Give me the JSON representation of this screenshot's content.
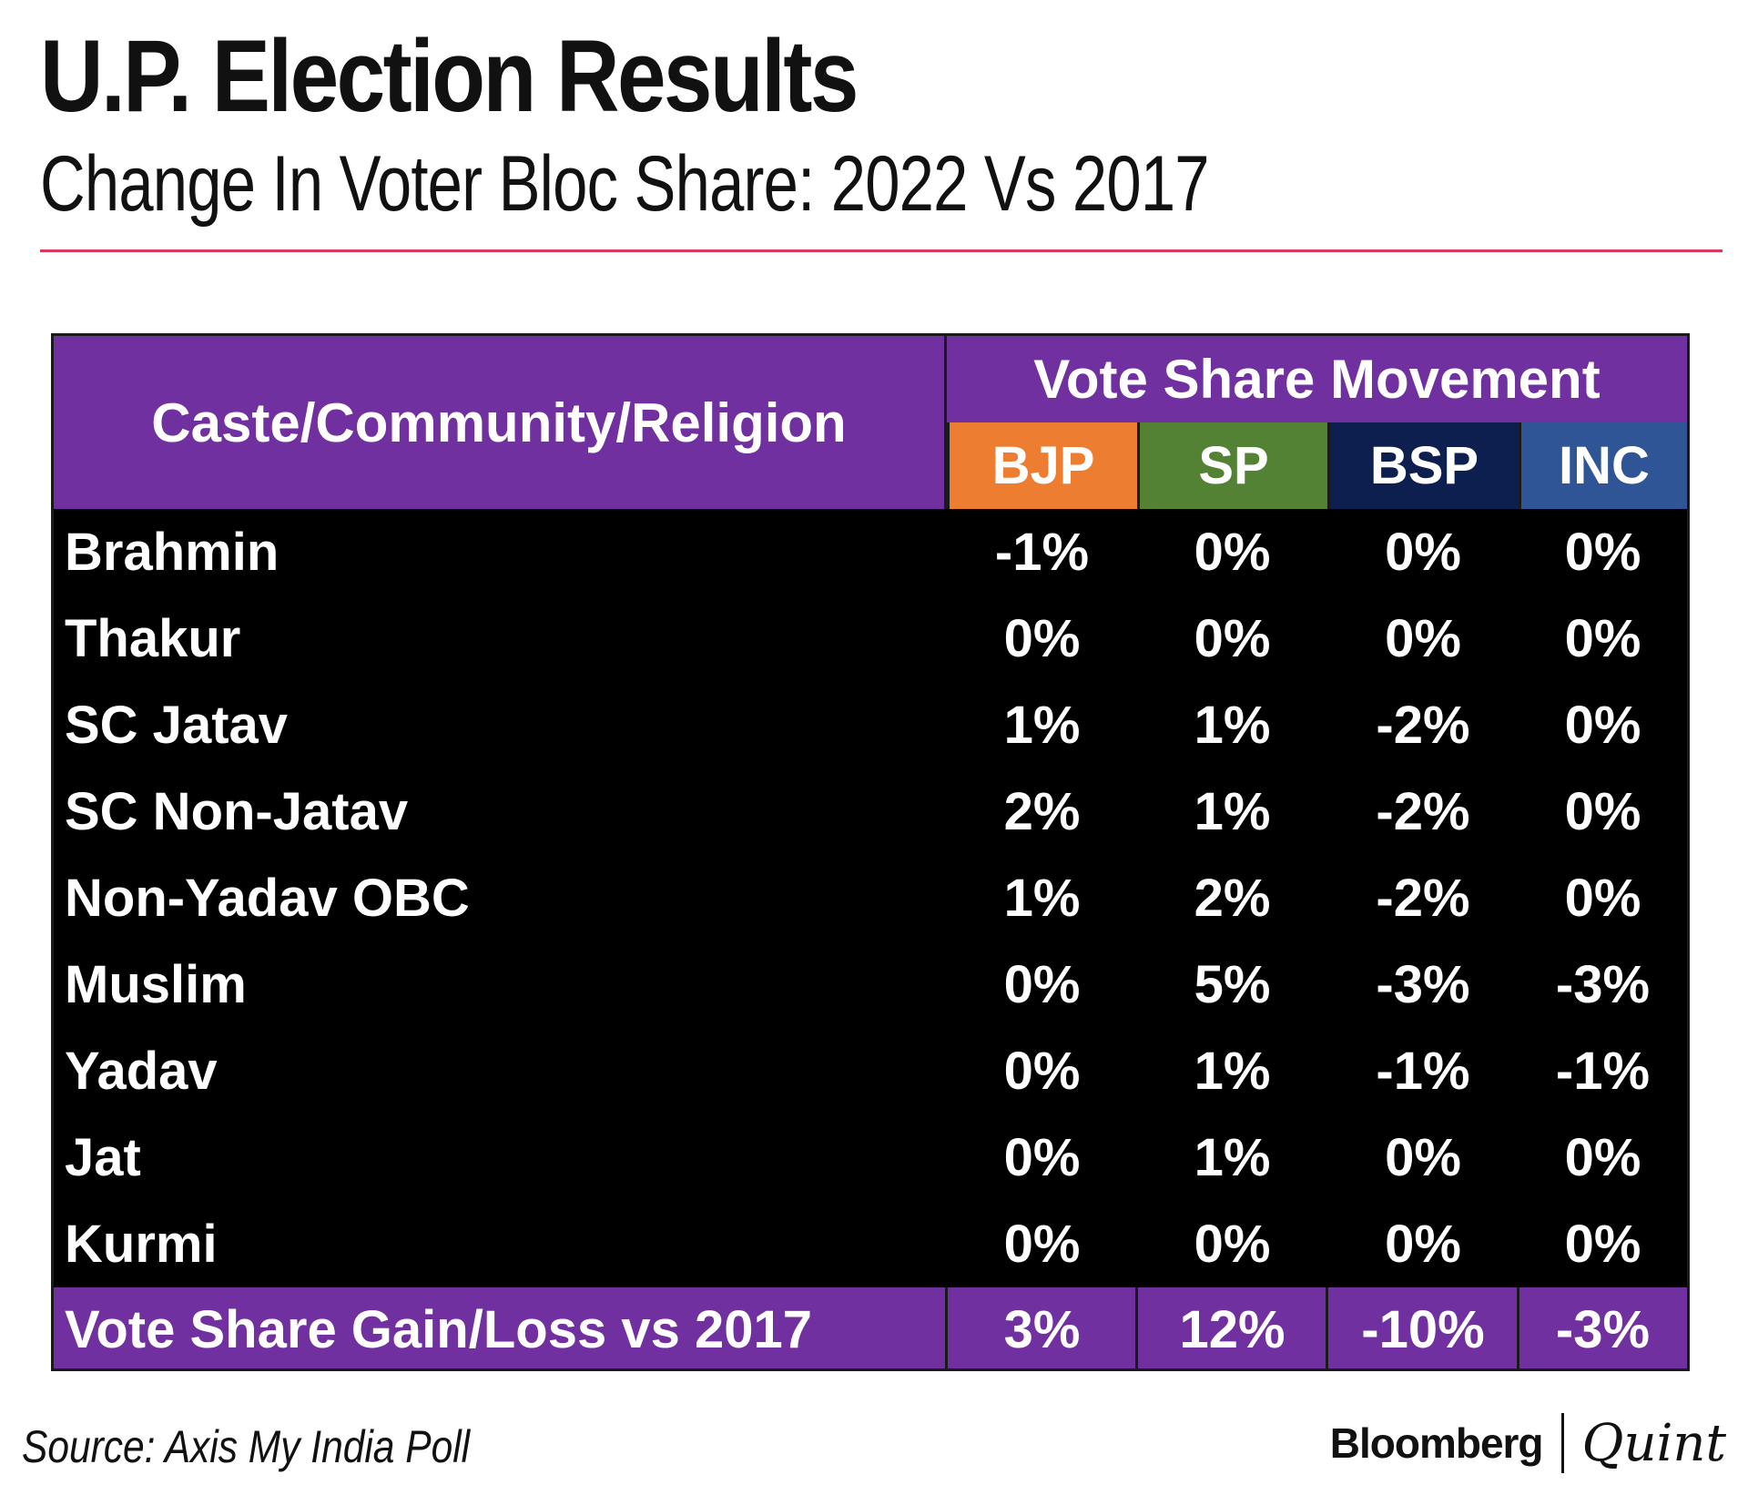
{
  "title": "U.P. Election Results",
  "subtitle": "Change In Voter Bloc Share: 2022 Vs 2017",
  "colors": {
    "header": "#7030a0",
    "bjp": "#ed7d31",
    "sp": "#548235",
    "bsp": "#0d1f4f",
    "inc": "#2f5597",
    "rule": "#d7385b"
  },
  "chart_data": {
    "type": "table",
    "header_caste": "Caste/Community/Religion",
    "header_group": "Vote Share Movement",
    "parties": [
      "BJP",
      "SP",
      "BSP",
      "INC"
    ],
    "rows": [
      {
        "name": "Brahmin",
        "values": [
          "-1%",
          "0%",
          "0%",
          "0%"
        ]
      },
      {
        "name": "Thakur",
        "values": [
          "0%",
          "0%",
          "0%",
          "0%"
        ]
      },
      {
        "name": "SC Jatav",
        "values": [
          "1%",
          "1%",
          "-2%",
          "0%"
        ]
      },
      {
        "name": "SC Non-Jatav",
        "values": [
          "2%",
          "1%",
          "-2%",
          "0%"
        ]
      },
      {
        "name": "Non-Yadav OBC",
        "values": [
          "1%",
          "2%",
          "-2%",
          "0%"
        ]
      },
      {
        "name": "Muslim",
        "values": [
          "0%",
          "5%",
          "-3%",
          "-3%"
        ]
      },
      {
        "name": "Yadav",
        "values": [
          "0%",
          "1%",
          "-1%",
          "-1%"
        ]
      },
      {
        "name": "Jat",
        "values": [
          "0%",
          "1%",
          "0%",
          "0%"
        ]
      },
      {
        "name": "Kurmi",
        "values": [
          "0%",
          "0%",
          "0%",
          "0%"
        ]
      }
    ],
    "total": {
      "name": "Vote Share Gain/Loss vs 2017",
      "values": [
        "3%",
        "12%",
        "-10%",
        "-3%"
      ]
    }
  },
  "source": "Source: Axis My India Poll",
  "logo": {
    "primary": "Bloomberg",
    "secondary": "Quint"
  }
}
